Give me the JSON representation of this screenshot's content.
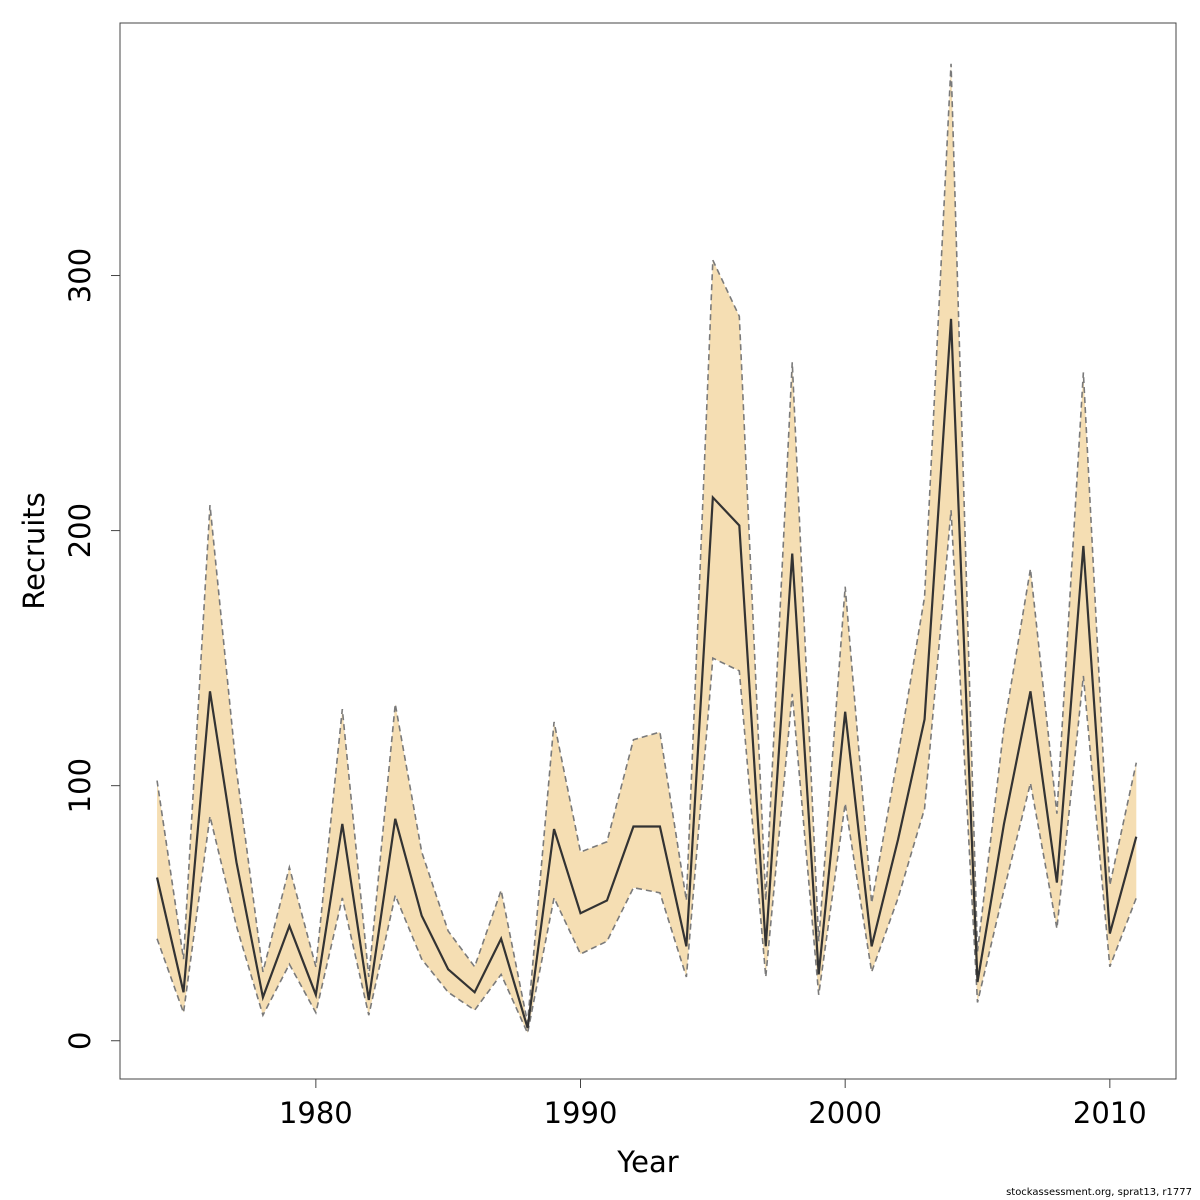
{
  "chart_data": {
    "type": "line",
    "xlabel": "Year",
    "ylabel": "Recruits",
    "xlim": [
      1972.6,
      2012.5
    ],
    "ylim": [
      -15,
      399
    ],
    "x_ticks": [
      1980,
      1990,
      2000,
      2010
    ],
    "y_ticks": [
      0,
      100,
      200,
      300
    ],
    "grid": false,
    "legend": "none",
    "x": [
      1974,
      1975,
      1976,
      1977,
      1978,
      1979,
      1980,
      1981,
      1982,
      1983,
      1984,
      1985,
      1986,
      1987,
      1988,
      1989,
      1990,
      1991,
      1992,
      1993,
      1994,
      1995,
      1996,
      1997,
      1998,
      1999,
      2000,
      2001,
      2002,
      2003,
      2004,
      2005,
      2006,
      2007,
      2008,
      2009,
      2010,
      2011
    ],
    "series": [
      {
        "role": "estimate",
        "values": [
          64,
          19,
          137,
          70,
          17,
          45,
          18,
          85,
          16,
          87,
          49,
          28,
          19,
          40,
          5,
          83,
          50,
          55,
          84,
          84,
          37,
          213,
          202,
          37,
          191,
          26,
          129,
          37,
          79,
          126,
          283,
          23,
          85,
          137,
          62,
          194,
          42,
          80
        ]
      },
      {
        "role": "upper",
        "values": [
          102,
          32,
          210,
          106,
          27,
          68,
          29,
          130,
          25,
          132,
          74,
          43,
          29,
          59,
          7,
          125,
          74,
          78,
          118,
          121,
          55,
          306,
          284,
          55,
          266,
          39,
          178,
          54,
          112,
          174,
          383,
          35,
          123,
          185,
          89,
          262,
          61,
          109
        ]
      },
      {
        "role": "lower",
        "values": [
          40,
          11,
          88,
          45,
          10,
          30,
          11,
          56,
          10,
          57,
          32,
          19,
          12,
          26,
          3,
          56,
          34,
          39,
          60,
          58,
          25,
          150,
          145,
          25,
          136,
          18,
          93,
          27,
          56,
          91,
          208,
          15,
          59,
          101,
          44,
          143,
          29,
          56
        ]
      }
    ],
    "colors": {
      "band": "#f5deb3",
      "line": "#333333",
      "bound": "#7a7a7a",
      "frame": "#444444"
    }
  },
  "footer": "stockassessment.org, sprat13, r1777"
}
